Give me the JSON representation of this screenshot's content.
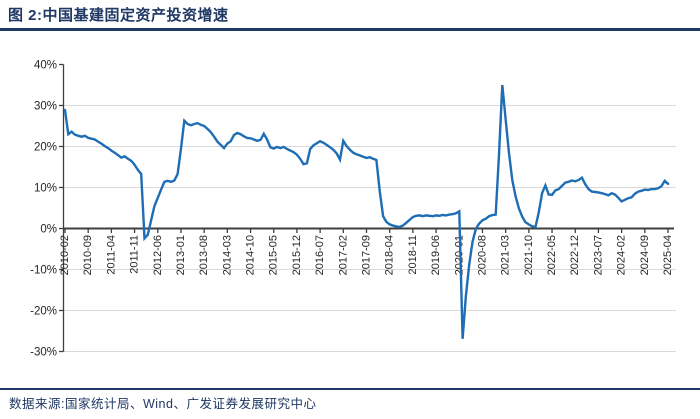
{
  "figure": {
    "title": "图 2:中国基建固定资产投资增速",
    "source": "数据来源:国家统计局、Wind、广发证券发展研究中心"
  },
  "colors": {
    "navy_text": "#1f3864",
    "rule_navy": "#1f3864",
    "line_blue": "#1e6db5",
    "grid_gray": "#d9d9d9",
    "axis_dark": "#3f3f3f",
    "tick_label": "#262626",
    "background": "#ffffff"
  },
  "chart_data": {
    "type": "line",
    "title": "中国基建固定资产投资增速",
    "ylabel": "",
    "xlabel": "",
    "ylim": [
      -30,
      40
    ],
    "grid": "horizontal",
    "legend": "none",
    "y_tick_labels": [
      "40%",
      "30%",
      "20%",
      "10%",
      "0%",
      "-10%",
      "-20%",
      "-30%"
    ],
    "y_tick_values": [
      40,
      30,
      20,
      10,
      0,
      -10,
      -20,
      -30
    ],
    "x_tick_interval": 7,
    "x_tick_labels": [
      "2010-02",
      "2010-09",
      "2011-04",
      "2011-11",
      "2012-06",
      "2013-01",
      "2013-08",
      "2014-03",
      "2014-10",
      "2015-05",
      "2015-12",
      "2016-07",
      "2017-02",
      "2017-09",
      "2018-04",
      "2018-11",
      "2019-06",
      "2020-01",
      "2020-08",
      "2021-03",
      "2021-10",
      "2022-05",
      "2022-12",
      "2023-07",
      "2024-02",
      "2024-09",
      "2025-04"
    ],
    "x": [
      "2010-02",
      "2010-03",
      "2010-04",
      "2010-05",
      "2010-06",
      "2010-07",
      "2010-08",
      "2010-09",
      "2010-10",
      "2010-11",
      "2010-12",
      "2011-01",
      "2011-02",
      "2011-03",
      "2011-04",
      "2011-05",
      "2011-06",
      "2011-07",
      "2011-08",
      "2011-09",
      "2011-10",
      "2011-11",
      "2011-12",
      "2012-01",
      "2012-02",
      "2012-03",
      "2012-04",
      "2012-05",
      "2012-06",
      "2012-07",
      "2012-08",
      "2012-09",
      "2012-10",
      "2012-11",
      "2012-12",
      "2013-01",
      "2013-02",
      "2013-03",
      "2013-04",
      "2013-05",
      "2013-06",
      "2013-07",
      "2013-08",
      "2013-09",
      "2013-10",
      "2013-11",
      "2013-12",
      "2014-01",
      "2014-02",
      "2014-03",
      "2014-04",
      "2014-05",
      "2014-06",
      "2014-07",
      "2014-08",
      "2014-09",
      "2014-10",
      "2014-11",
      "2014-12",
      "2015-01",
      "2015-02",
      "2015-03",
      "2015-04",
      "2015-05",
      "2015-06",
      "2015-07",
      "2015-08",
      "2015-09",
      "2015-10",
      "2015-11",
      "2015-12",
      "2016-01",
      "2016-02",
      "2016-03",
      "2016-04",
      "2016-05",
      "2016-06",
      "2016-07",
      "2016-08",
      "2016-09",
      "2016-10",
      "2016-11",
      "2016-12",
      "2017-01",
      "2017-02",
      "2017-03",
      "2017-04",
      "2017-05",
      "2017-06",
      "2017-07",
      "2017-08",
      "2017-09",
      "2017-10",
      "2017-11",
      "2017-12",
      "2018-01",
      "2018-02",
      "2018-03",
      "2018-04",
      "2018-05",
      "2018-06",
      "2018-07",
      "2018-08",
      "2018-09",
      "2018-10",
      "2018-11",
      "2018-12",
      "2019-01",
      "2019-02",
      "2019-03",
      "2019-04",
      "2019-05",
      "2019-06",
      "2019-07",
      "2019-08",
      "2019-09",
      "2019-10",
      "2019-11",
      "2019-12",
      "2020-01",
      "2020-02",
      "2020-03",
      "2020-04",
      "2020-05",
      "2020-06",
      "2020-07",
      "2020-08",
      "2020-09",
      "2020-10",
      "2020-11",
      "2020-12",
      "2021-01",
      "2021-02",
      "2021-03",
      "2021-04",
      "2021-05",
      "2021-06",
      "2021-07",
      "2021-08",
      "2021-09",
      "2021-10",
      "2021-11",
      "2021-12",
      "2022-01",
      "2022-02",
      "2022-03",
      "2022-04",
      "2022-05",
      "2022-06",
      "2022-07",
      "2022-08",
      "2022-09",
      "2022-10",
      "2022-11",
      "2022-12",
      "2023-01",
      "2023-02",
      "2023-03",
      "2023-04",
      "2023-05",
      "2023-06",
      "2023-07",
      "2023-08",
      "2023-09",
      "2023-10",
      "2023-11",
      "2023-12",
      "2024-01",
      "2024-02",
      "2024-03",
      "2024-04",
      "2024-05",
      "2024-06",
      "2024-07",
      "2024-08",
      "2024-09",
      "2024-10",
      "2024-11",
      "2024-12",
      "2025-01",
      "2025-02",
      "2025-03",
      "2025-04"
    ],
    "values": [
      28.9,
      23.0,
      23.6,
      22.9,
      22.6,
      22.4,
      22.6,
      22.1,
      21.9,
      21.7,
      21.2,
      20.7,
      20.1,
      19.6,
      19.0,
      18.5,
      17.9,
      17.3,
      17.6,
      17.0,
      16.5,
      15.5,
      14.3,
      13.3,
      -2.4,
      -1.5,
      2.0,
      5.5,
      7.5,
      9.5,
      11.4,
      11.6,
      11.4,
      11.7,
      13.3,
      19.5,
      26.3,
      25.5,
      25.2,
      25.5,
      25.7,
      25.3,
      25.0,
      24.3,
      23.5,
      22.4,
      21.2,
      20.4,
      19.6,
      20.7,
      21.3,
      22.8,
      23.3,
      23.0,
      22.5,
      22.1,
      22.0,
      21.7,
      21.4,
      21.6,
      23.1,
      21.7,
      19.8,
      19.5,
      19.9,
      19.6,
      19.9,
      19.4,
      19.0,
      18.6,
      18.0,
      17.0,
      15.7,
      15.9,
      19.4,
      20.3,
      20.8,
      21.3,
      20.9,
      20.4,
      19.8,
      19.2,
      18.3,
      16.8,
      21.4,
      20.1,
      19.2,
      18.5,
      18.1,
      17.8,
      17.5,
      17.2,
      17.4,
      17.0,
      16.7,
      9.0,
      3.0,
      1.6,
      1.0,
      0.7,
      0.5,
      0.4,
      0.7,
      1.4,
      2.1,
      2.8,
      3.1,
      3.2,
      3.0,
      3.2,
      3.1,
      3.0,
      3.2,
      3.1,
      3.3,
      3.2,
      3.4,
      3.5,
      3.7,
      4.2,
      -26.9,
      -16.4,
      -8.8,
      -3.3,
      -0.1,
      1.2,
      2.0,
      2.4,
      3.0,
      3.3,
      3.4,
      18.0,
      35.0,
      26.5,
      18.4,
      11.8,
      7.8,
      4.9,
      2.9,
      1.5,
      1.0,
      0.5,
      0.4,
      4.0,
      8.6,
      10.5,
      8.3,
      8.2,
      9.3,
      9.6,
      10.4,
      11.2,
      11.4,
      11.7,
      11.5,
      11.8,
      12.4,
      10.8,
      9.6,
      9.0,
      8.9,
      8.8,
      8.6,
      8.4,
      8.1,
      8.6,
      8.3,
      7.5,
      6.6,
      7.0,
      7.4,
      7.6,
      8.5,
      9.0,
      9.2,
      9.5,
      9.4,
      9.6,
      9.6,
      9.8,
      10.3,
      11.6,
      10.9
    ]
  }
}
